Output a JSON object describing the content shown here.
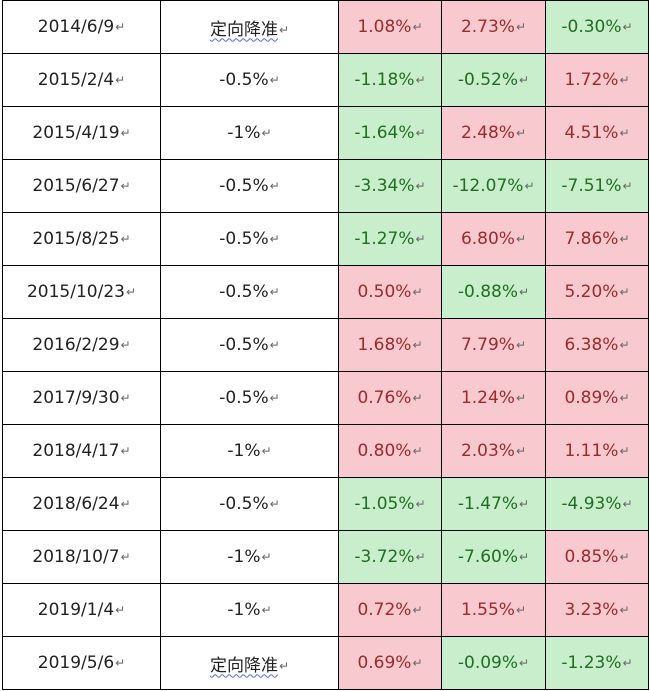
{
  "paragraph_mark": "↵",
  "rows": [
    {
      "date": "2014/6/9",
      "cut": "定向降准",
      "v1": "1.08%",
      "v2": "2.73%",
      "v3": "-0.30%"
    },
    {
      "date": "2015/2/4",
      "cut": "-0.5%",
      "v1": "-1.18%",
      "v2": "-0.52%",
      "v3": "1.72%"
    },
    {
      "date": "2015/4/19",
      "cut": "-1%",
      "v1": "-1.64%",
      "v2": "2.48%",
      "v3": "4.51%"
    },
    {
      "date": "2015/6/27",
      "cut": "-0.5%",
      "v1": "-3.34%",
      "v2": "-12.07%",
      "v3": "-7.51%"
    },
    {
      "date": "2015/8/25",
      "cut": "-0.5%",
      "v1": "-1.27%",
      "v2": "6.80%",
      "v3": "7.86%"
    },
    {
      "date": "2015/10/23",
      "cut": "-0.5%",
      "v1": "0.50%",
      "v2": "-0.88%",
      "v3": "5.20%"
    },
    {
      "date": "2016/2/29",
      "cut": "-0.5%",
      "v1": "1.68%",
      "v2": "7.79%",
      "v3": "6.38%"
    },
    {
      "date": "2017/9/30",
      "cut": "-0.5%",
      "v1": "0.76%",
      "v2": "1.24%",
      "v3": "0.89%"
    },
    {
      "date": "2018/4/17",
      "cut": "-1%",
      "v1": "0.80%",
      "v2": "2.03%",
      "v3": "1.11%"
    },
    {
      "date": "2018/6/24",
      "cut": "-0.5%",
      "v1": "-1.05%",
      "v2": "-1.47%",
      "v3": "-4.93%"
    },
    {
      "date": "2018/10/7",
      "cut": "-1%",
      "v1": "-3.72%",
      "v2": "-7.60%",
      "v3": "0.85%"
    },
    {
      "date": "2019/1/4",
      "cut": "-1%",
      "v1": "0.72%",
      "v2": "1.55%",
      "v3": "3.23%"
    },
    {
      "date": "2019/5/6",
      "cut": "定向降准",
      "v1": "0.69%",
      "v2": "-0.09%",
      "v3": "-1.23%"
    }
  ],
  "colors": {
    "positive_bg": "#f8c9cf",
    "positive_text": "#9c2a2a",
    "negative_bg": "#c9eecb",
    "negative_text": "#1f6e22"
  }
}
